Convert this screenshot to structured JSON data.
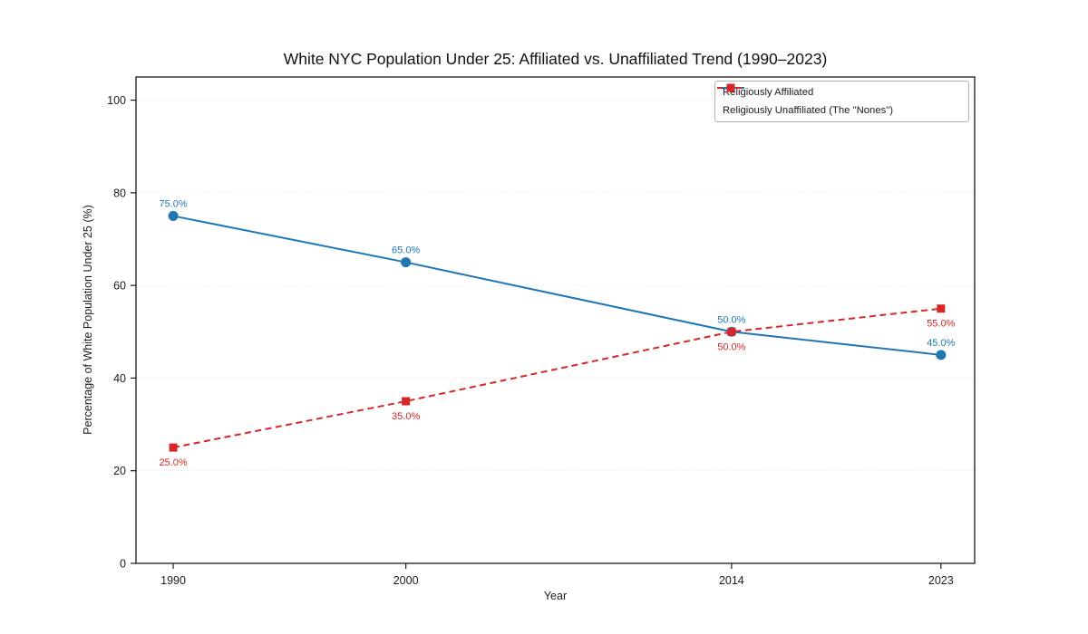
{
  "title": "White NYC Population Under 25: Affiliated vs. Unaffiliated Trend (1990–2023)",
  "chart_data": {
    "type": "line",
    "x": [
      1990,
      2000,
      2014,
      2023
    ],
    "series": [
      {
        "name": "Religiously Affiliated",
        "values": [
          75.0,
          65.0,
          50.0,
          45.0
        ],
        "color": "#1f77b4",
        "marker": "circle",
        "line_style": "solid",
        "label_position": "above"
      },
      {
        "name": "Religiously Unaffiliated (The \"Nones\")",
        "values": [
          25.0,
          35.0,
          50.0,
          55.0
        ],
        "color": "#d62728",
        "marker": "square",
        "line_style": "dashed",
        "label_position": "below"
      }
    ],
    "point_labels": [
      [
        "75.0%",
        "65.0%",
        "50.0%",
        "45.0%"
      ],
      [
        "25.0%",
        "35.0%",
        "50.0%",
        "55.0%"
      ]
    ],
    "xlabel": "Year",
    "ylabel": "Percentage of White Population Under 25 (%)",
    "xticks": [
      1990,
      2000,
      2014,
      2023
    ],
    "yticks": [
      0,
      20,
      40,
      60,
      80,
      100
    ],
    "xlim": [
      1988.4,
      2024.45
    ],
    "ylim": [
      0,
      105
    ],
    "grid": "horizontal-dotted",
    "legend_position": "upper right"
  }
}
